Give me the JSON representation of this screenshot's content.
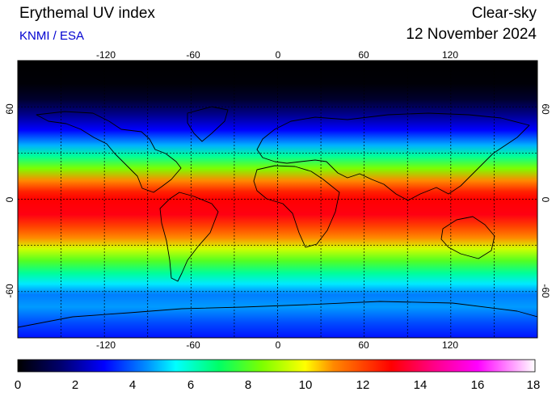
{
  "header": {
    "title": "Erythemal UV index",
    "source": "KNMI / ESA",
    "mode": "Clear-sky",
    "date": "12 November 2024"
  },
  "map": {
    "longitude_ticks": [
      "-120",
      "-60",
      "0",
      "60",
      "120"
    ],
    "latitude_ticks": [
      "60",
      "0",
      "-60"
    ],
    "grid_longitudes": [
      -150,
      -120,
      -90,
      -60,
      -30,
      0,
      30,
      60,
      90,
      120,
      150
    ],
    "grid_latitudes": [
      60,
      30,
      0,
      -30,
      -60
    ],
    "lon_range": [
      -180,
      180
    ],
    "lat_range": [
      -90,
      90
    ],
    "uv_by_latitude": [
      {
        "lat": 90,
        "uv": 0
      },
      {
        "lat": 75,
        "uv": 0.1
      },
      {
        "lat": 65,
        "uv": 0.6
      },
      {
        "lat": 55,
        "uv": 1.8
      },
      {
        "lat": 45,
        "uv": 3
      },
      {
        "lat": 35,
        "uv": 4.8
      },
      {
        "lat": 28,
        "uv": 6.5
      },
      {
        "lat": 20,
        "uv": 8.5
      },
      {
        "lat": 12,
        "uv": 11
      },
      {
        "lat": 5,
        "uv": 12.5
      },
      {
        "lat": 0,
        "uv": 13
      },
      {
        "lat": -10,
        "uv": 13.2
      },
      {
        "lat": -18,
        "uv": 12
      },
      {
        "lat": -25,
        "uv": 11
      },
      {
        "lat": -32,
        "uv": 9.5
      },
      {
        "lat": -40,
        "uv": 8
      },
      {
        "lat": -48,
        "uv": 6.5
      },
      {
        "lat": -55,
        "uv": 5.3
      },
      {
        "lat": -62,
        "uv": 4.3
      },
      {
        "lat": -70,
        "uv": 4.6
      },
      {
        "lat": -80,
        "uv": 3.8
      },
      {
        "lat": -90,
        "uv": 3.2
      }
    ]
  },
  "colorbar": {
    "labels": [
      "0",
      "2",
      "4",
      "6",
      "8",
      "10",
      "12",
      "14",
      "16",
      "18"
    ],
    "range": [
      0,
      18
    ],
    "stops": [
      {
        "v": 0,
        "color": "#000000"
      },
      {
        "v": 1.5,
        "color": "#00006e"
      },
      {
        "v": 3,
        "color": "#0000ff"
      },
      {
        "v": 4.5,
        "color": "#0090ff"
      },
      {
        "v": 5.5,
        "color": "#00ffff"
      },
      {
        "v": 7,
        "color": "#00ff66"
      },
      {
        "v": 8.5,
        "color": "#7cff00"
      },
      {
        "v": 10,
        "color": "#ffff00"
      },
      {
        "v": 11,
        "color": "#ff8800"
      },
      {
        "v": 13,
        "color": "#ff0000"
      },
      {
        "v": 14.5,
        "color": "#ff0088"
      },
      {
        "v": 16,
        "color": "#ff00ff"
      },
      {
        "v": 18,
        "color": "#ffffff"
      }
    ]
  }
}
